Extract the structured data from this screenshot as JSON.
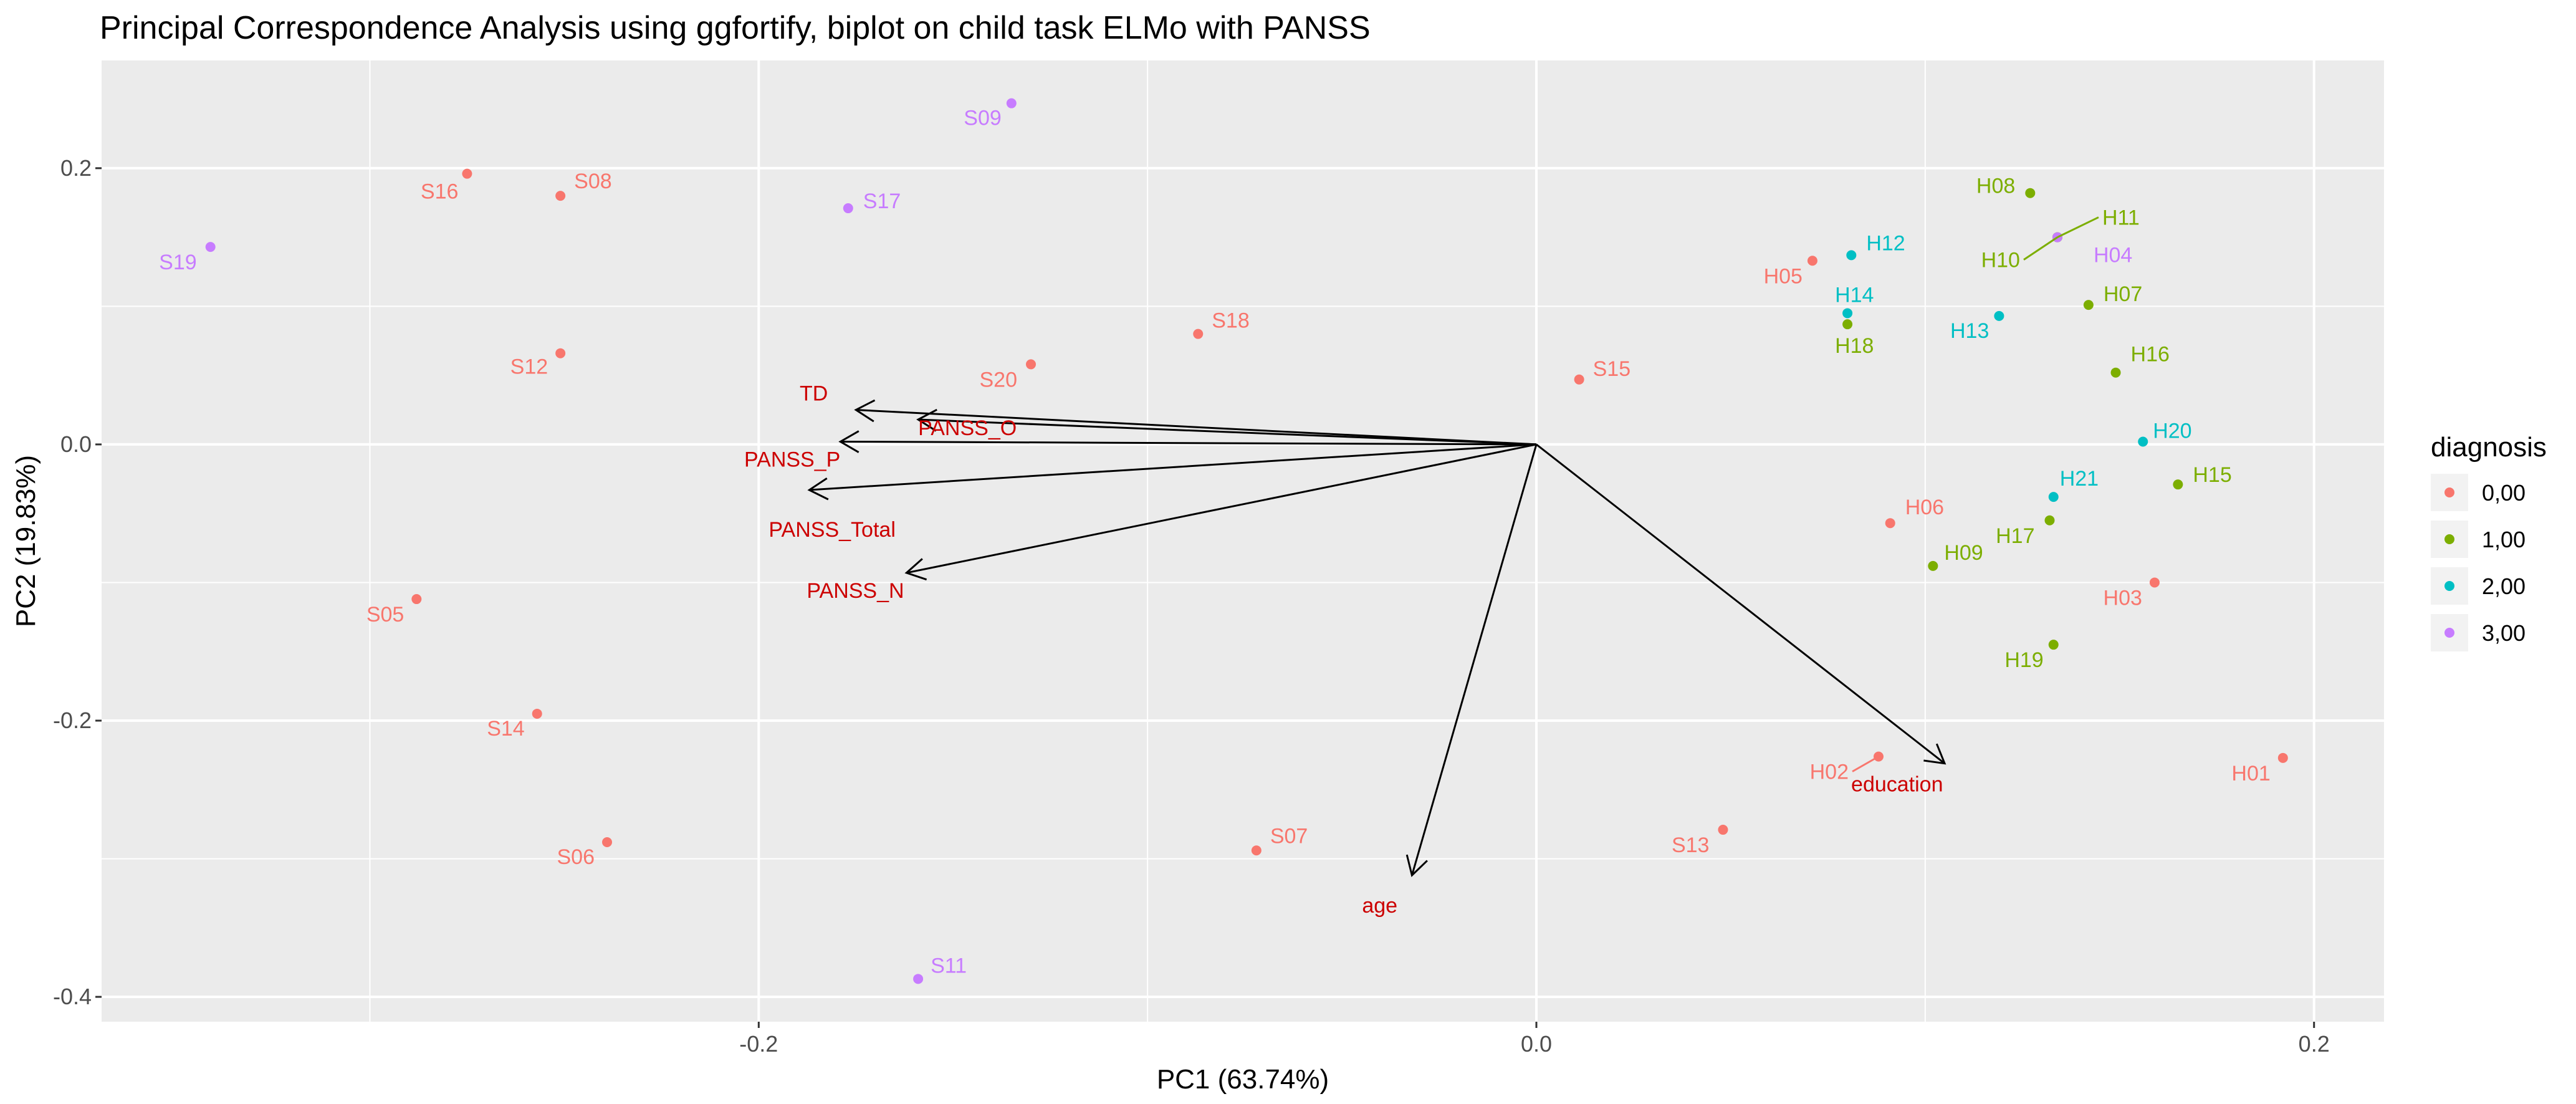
{
  "chart_data": {
    "type": "scatter",
    "title": "Principal Correspondence Analysis using ggfortify, biplot on child task ELMo with PANSS",
    "xlabel": "PC1 (63.74%)",
    "ylabel": "PC2 (19.83%)",
    "xlim": [
      -0.369,
      0.218
    ],
    "ylim": [
      -0.418,
      0.278
    ],
    "x_ticks": [
      -0.2,
      0.0,
      0.2
    ],
    "x_tick_labels": [
      "-0.2",
      "0.0",
      "0.2"
    ],
    "y_ticks": [
      0.2,
      0.0,
      -0.2,
      -0.4
    ],
    "y_tick_labels": [
      "0.2",
      "0.0",
      "-0.2",
      "-0.4"
    ],
    "grid": true,
    "legend": {
      "title": "diagnosis",
      "position": "right",
      "entries": [
        {
          "label": "0,00",
          "color": "#F8766D"
        },
        {
          "label": "1,00",
          "color": "#7CAE00"
        },
        {
          "label": "2,00",
          "color": "#00BFC4"
        },
        {
          "label": "3,00",
          "color": "#C77CFF"
        }
      ]
    },
    "points": [
      {
        "label": "S09",
        "x": -0.135,
        "y": 0.247,
        "group": "3,00"
      },
      {
        "label": "S16",
        "x": -0.275,
        "y": 0.196,
        "group": "0,00"
      },
      {
        "label": "S08",
        "x": -0.251,
        "y": 0.18,
        "group": "0,00"
      },
      {
        "label": "S17",
        "x": -0.177,
        "y": 0.171,
        "group": "3,00"
      },
      {
        "label": "S19",
        "x": -0.341,
        "y": 0.143,
        "group": "3,00"
      },
      {
        "label": "S12",
        "x": -0.251,
        "y": 0.066,
        "group": "0,00"
      },
      {
        "label": "S18",
        "x": -0.087,
        "y": 0.08,
        "group": "0,00"
      },
      {
        "label": "S20",
        "x": -0.13,
        "y": 0.058,
        "group": "0,00"
      },
      {
        "label": "S15",
        "x": 0.011,
        "y": 0.047,
        "group": "0,00"
      },
      {
        "label": "S05",
        "x": -0.288,
        "y": -0.112,
        "group": "0,00"
      },
      {
        "label": "S14",
        "x": -0.257,
        "y": -0.195,
        "group": "0,00"
      },
      {
        "label": "S06",
        "x": -0.239,
        "y": -0.288,
        "group": "0,00"
      },
      {
        "label": "S07",
        "x": -0.072,
        "y": -0.294,
        "group": "0,00"
      },
      {
        "label": "S11",
        "x": -0.159,
        "y": -0.387,
        "group": "3,00"
      },
      {
        "label": "S13",
        "x": 0.048,
        "y": -0.279,
        "group": "0,00"
      },
      {
        "label": "H08",
        "x": 0.127,
        "y": 0.182,
        "group": "1,00"
      },
      {
        "label": "H11",
        "x": 0.134,
        "y": 0.15,
        "group": "1,00"
      },
      {
        "label": "H10",
        "x": 0.134,
        "y": 0.15,
        "group": "1,00"
      },
      {
        "label": "H04",
        "x": 0.134,
        "y": 0.15,
        "group": "3,00"
      },
      {
        "label": "H12",
        "x": 0.081,
        "y": 0.137,
        "group": "2,00"
      },
      {
        "label": "H05",
        "x": 0.071,
        "y": 0.133,
        "group": "0,00"
      },
      {
        "label": "H07",
        "x": 0.142,
        "y": 0.101,
        "group": "1,00"
      },
      {
        "label": "H14",
        "x": 0.08,
        "y": 0.095,
        "group": "2,00"
      },
      {
        "label": "H13",
        "x": 0.119,
        "y": 0.093,
        "group": "2,00"
      },
      {
        "label": "H18",
        "x": 0.08,
        "y": 0.087,
        "group": "1,00"
      },
      {
        "label": "H16",
        "x": 0.149,
        "y": 0.052,
        "group": "1,00"
      },
      {
        "label": "H20",
        "x": 0.156,
        "y": 0.002,
        "group": "2,00"
      },
      {
        "label": "H15",
        "x": 0.165,
        "y": -0.029,
        "group": "1,00"
      },
      {
        "label": "H21",
        "x": 0.133,
        "y": -0.038,
        "group": "2,00"
      },
      {
        "label": "H17",
        "x": 0.132,
        "y": -0.055,
        "group": "1,00"
      },
      {
        "label": "H06",
        "x": 0.091,
        "y": -0.057,
        "group": "0,00"
      },
      {
        "label": "H09",
        "x": 0.102,
        "y": -0.088,
        "group": "1,00"
      },
      {
        "label": "H03",
        "x": 0.159,
        "y": -0.1,
        "group": "0,00"
      },
      {
        "label": "H19",
        "x": 0.133,
        "y": -0.145,
        "group": "1,00"
      },
      {
        "label": "H02",
        "x": 0.088,
        "y": -0.226,
        "group": "0,00"
      },
      {
        "label": "H01",
        "x": 0.192,
        "y": -0.227,
        "group": "0,00"
      }
    ],
    "loadings": [
      {
        "label": "TD",
        "x": -0.175,
        "y": 0.025
      },
      {
        "label": "PANSS_O",
        "x": -0.159,
        "y": 0.018
      },
      {
        "label": "PANSS_P",
        "x": -0.179,
        "y": 0.002
      },
      {
        "label": "PANSS_Total",
        "x": -0.187,
        "y": -0.033
      },
      {
        "label": "PANSS_N",
        "x": -0.162,
        "y": -0.093
      },
      {
        "label": "education",
        "x": 0.105,
        "y": -0.231
      },
      {
        "label": "age",
        "x": -0.032,
        "y": -0.312
      }
    ]
  }
}
